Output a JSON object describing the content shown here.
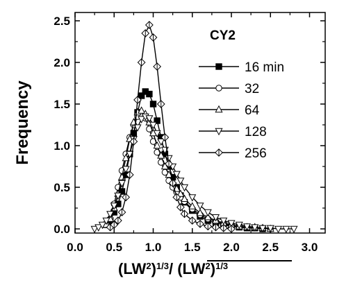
{
  "chart_data": {
    "type": "line",
    "title": "CY2",
    "ylabel": "Frequency",
    "xlabel_parts": [
      "(LW",
      "2",
      ")",
      "1/3",
      "/ ",
      "(LW",
      "2",
      ")",
      "1/3"
    ],
    "xlim": [
      0.0,
      3.2
    ],
    "ylim": [
      -0.05,
      2.6
    ],
    "x_ticks": [
      0.0,
      0.5,
      1.0,
      1.5,
      2.0,
      2.5,
      3.0
    ],
    "x_tick_labels": [
      "0.0",
      "0.5",
      "1.0",
      "1.5",
      "2.0",
      "2.5",
      "3.0"
    ],
    "y_ticks": [
      0.0,
      0.5,
      1.0,
      1.5,
      2.0,
      2.5
    ],
    "y_tick_labels": [
      "0.0",
      "0.5",
      "1.0",
      "1.5",
      "2.0",
      "2.5"
    ],
    "grid": false,
    "legend_position": "top-right",
    "series": [
      {
        "name": "16 min",
        "marker": "filled-square",
        "x": [
          0.4,
          0.45,
          0.5,
          0.55,
          0.6,
          0.65,
          0.7,
          0.75,
          0.8,
          0.85,
          0.9,
          0.95,
          1.0,
          1.05,
          1.1,
          1.15,
          1.2,
          1.25,
          1.3,
          1.35,
          1.4,
          1.5,
          1.6,
          1.7,
          1.8,
          1.9,
          2.0,
          2.1,
          2.2,
          2.3,
          2.4
        ],
        "y": [
          0.05,
          0.1,
          0.2,
          0.3,
          0.45,
          0.65,
          0.9,
          1.15,
          1.4,
          1.6,
          1.65,
          1.62,
          1.5,
          1.3,
          1.1,
          0.9,
          0.75,
          0.62,
          0.5,
          0.4,
          0.32,
          0.22,
          0.15,
          0.1,
          0.07,
          0.05,
          0.03,
          0.02,
          0.01,
          0.01,
          0.0
        ]
      },
      {
        "name": "32",
        "marker": "open-circle",
        "x": [
          0.4,
          0.45,
          0.5,
          0.55,
          0.6,
          0.65,
          0.7,
          0.75,
          0.8,
          0.85,
          0.9,
          0.95,
          1.0,
          1.05,
          1.1,
          1.15,
          1.2,
          1.25,
          1.3,
          1.35,
          1.4,
          1.5,
          1.6,
          1.7,
          1.8,
          1.9,
          2.0,
          2.1,
          2.2,
          2.3,
          2.4,
          2.5
        ],
        "y": [
          0.05,
          0.12,
          0.3,
          0.5,
          0.7,
          0.9,
          1.1,
          1.25,
          1.35,
          1.38,
          1.33,
          1.2,
          1.05,
          0.92,
          0.8,
          0.68,
          0.58,
          0.5,
          0.44,
          0.38,
          0.33,
          0.24,
          0.17,
          0.12,
          0.09,
          0.06,
          0.04,
          0.03,
          0.02,
          0.01,
          0.01,
          0.0
        ]
      },
      {
        "name": "64",
        "marker": "open-triangle-up",
        "x": [
          0.4,
          0.45,
          0.5,
          0.55,
          0.6,
          0.65,
          0.7,
          0.75,
          0.8,
          0.85,
          0.9,
          0.95,
          1.0,
          1.05,
          1.1,
          1.15,
          1.2,
          1.25,
          1.3,
          1.35,
          1.4,
          1.5,
          1.6,
          1.7,
          1.8,
          1.9,
          2.0,
          2.1,
          2.2,
          2.3,
          2.4,
          2.5
        ],
        "y": [
          0.05,
          0.12,
          0.25,
          0.42,
          0.62,
          0.85,
          1.08,
          1.28,
          1.4,
          1.42,
          1.38,
          1.28,
          1.15,
          1.0,
          0.88,
          0.75,
          0.65,
          0.56,
          0.48,
          0.42,
          0.36,
          0.27,
          0.19,
          0.14,
          0.1,
          0.07,
          0.05,
          0.03,
          0.02,
          0.02,
          0.01,
          0.0
        ]
      },
      {
        "name": "128",
        "marker": "open-triangle-down",
        "x": [
          0.25,
          0.3,
          0.35,
          0.4,
          0.45,
          0.5,
          0.55,
          0.6,
          0.65,
          0.7,
          0.75,
          0.8,
          0.85,
          0.9,
          0.95,
          1.0,
          1.05,
          1.1,
          1.15,
          1.2,
          1.25,
          1.3,
          1.35,
          1.4,
          1.5,
          1.6,
          1.7,
          1.8,
          1.9,
          2.0,
          2.1,
          2.2,
          2.3,
          2.4,
          2.5,
          2.6,
          2.7,
          2.8
        ],
        "y": [
          0.0,
          0.02,
          0.05,
          0.1,
          0.18,
          0.28,
          0.4,
          0.55,
          0.72,
          0.9,
          1.08,
          1.22,
          1.32,
          1.35,
          1.33,
          1.25,
          1.15,
          1.05,
          0.95,
          0.85,
          0.75,
          0.66,
          0.58,
          0.5,
          0.38,
          0.28,
          0.2,
          0.14,
          0.1,
          0.07,
          0.05,
          0.03,
          0.02,
          0.01,
          0.01,
          0.0,
          0.0,
          0.0
        ]
      },
      {
        "name": "256",
        "marker": "crossed-diamond",
        "x": [
          0.45,
          0.5,
          0.55,
          0.6,
          0.65,
          0.7,
          0.75,
          0.8,
          0.85,
          0.9,
          0.95,
          1.0,
          1.05,
          1.1,
          1.15,
          1.2,
          1.25,
          1.3,
          1.35,
          1.4,
          1.5,
          1.6,
          1.7,
          1.8,
          1.9,
          2.0
        ],
        "y": [
          0.02,
          0.05,
          0.1,
          0.2,
          0.38,
          0.65,
          1.05,
          1.55,
          2.0,
          2.35,
          2.45,
          2.3,
          1.95,
          1.5,
          1.1,
          0.78,
          0.55,
          0.38,
          0.26,
          0.18,
          0.1,
          0.06,
          0.03,
          0.02,
          0.01,
          0.0
        ]
      }
    ]
  }
}
